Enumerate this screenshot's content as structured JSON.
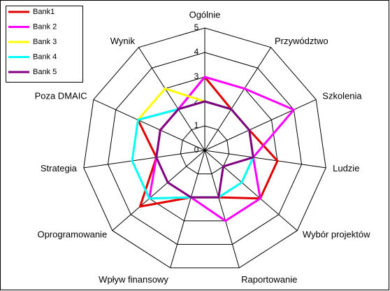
{
  "chart_data": {
    "type": "radar",
    "categories": [
      "Ogólnie",
      "Przywództwo",
      "Szkolenia",
      "Ludzie",
      "Wybór projektów",
      "Raportowanie",
      "Wpływ finansowy",
      "Oprogramowanie",
      "Strategia",
      "Poza DMAIC",
      "Wynik"
    ],
    "rlim": [
      0,
      5
    ],
    "rticks": [
      0,
      1,
      2,
      3,
      4,
      5
    ],
    "series": [
      {
        "name": "Bank1",
        "color": "#e00000",
        "values": [
          3,
          2,
          2,
          3,
          3,
          2,
          2,
          3.5,
          2,
          3,
          2
        ]
      },
      {
        "name": "Bank 2",
        "color": "#ff00ff",
        "values": [
          3,
          3,
          4,
          2,
          3,
          3,
          2,
          3,
          2,
          2,
          2
        ]
      },
      {
        "name": "Bank 3",
        "color": "#ffff00",
        "values": [
          2,
          2,
          2,
          2,
          2,
          2,
          2,
          3,
          3,
          3,
          3
        ]
      },
      {
        "name": "Bank 4",
        "color": "#00ffff",
        "values": [
          2,
          2,
          2,
          2,
          2,
          2,
          2,
          3,
          3,
          3,
          2
        ]
      },
      {
        "name": "Bank 5",
        "color": "#800080",
        "values": [
          2,
          2,
          2,
          2,
          1,
          2,
          2,
          2,
          2,
          2,
          2
        ]
      }
    ]
  }
}
